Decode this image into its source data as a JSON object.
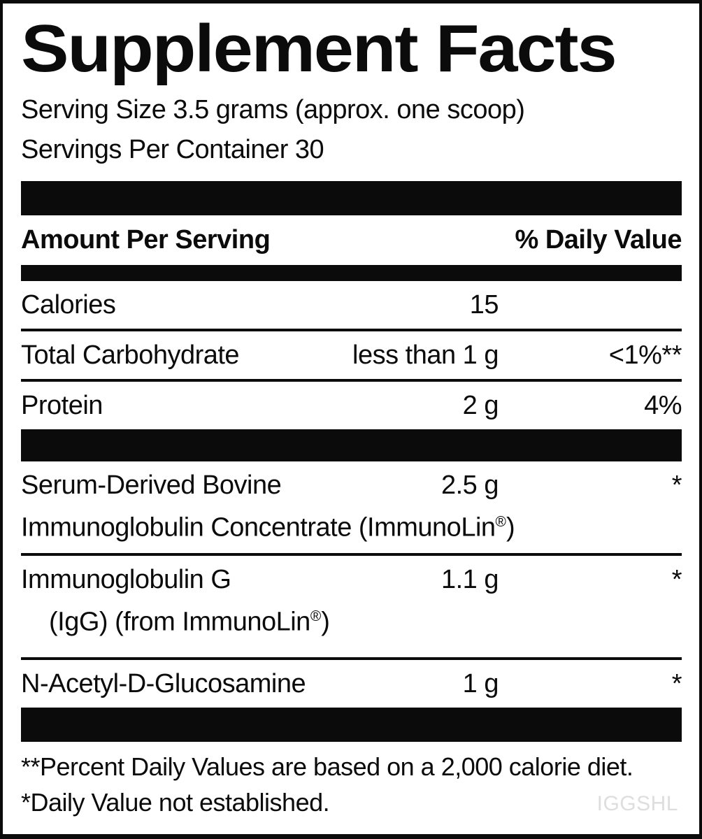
{
  "title": "Supplement Facts",
  "serving": {
    "size": "Serving Size 3.5 grams (approx. one scoop)",
    "per_container": "Servings Per Container 30"
  },
  "table": {
    "amount_header": "Amount Per Serving",
    "dv_header": "% Daily Value",
    "rows": [
      {
        "name": "Calories",
        "amount": "15",
        "dv": ""
      },
      {
        "name": "Total Carbohydrate",
        "amount": "less than 1 g",
        "dv": "<1%**"
      },
      {
        "name": "Protein",
        "amount": "2 g",
        "dv": "4%"
      },
      {
        "name": "Serum-Derived Bovine",
        "line2_pre": "Immunoglobulin Concentrate (ImmunoLin",
        "line2_reg": "®",
        "line2_post": ")",
        "amount": "2.5 g",
        "dv": "*"
      },
      {
        "name": "Immunoglobulin G",
        "line2_pre": "(IgG) (from ImmunoLin",
        "line2_reg": "®",
        "line2_post": ")",
        "amount": "1.1 g",
        "dv": "*"
      },
      {
        "name": "N-Acetyl-D-Glucosamine",
        "amount": "1 g",
        "dv": "*"
      }
    ]
  },
  "footnotes": {
    "daily_values": "**Percent Daily Values are based on a 2,000 calorie diet.",
    "not_established": "*Daily Value not established."
  },
  "watermark": "IGGSHL",
  "colors": {
    "text": "#0b0b0b",
    "bar": "#0b0b0b",
    "watermark": "#dedede",
    "background": "#ffffff"
  }
}
